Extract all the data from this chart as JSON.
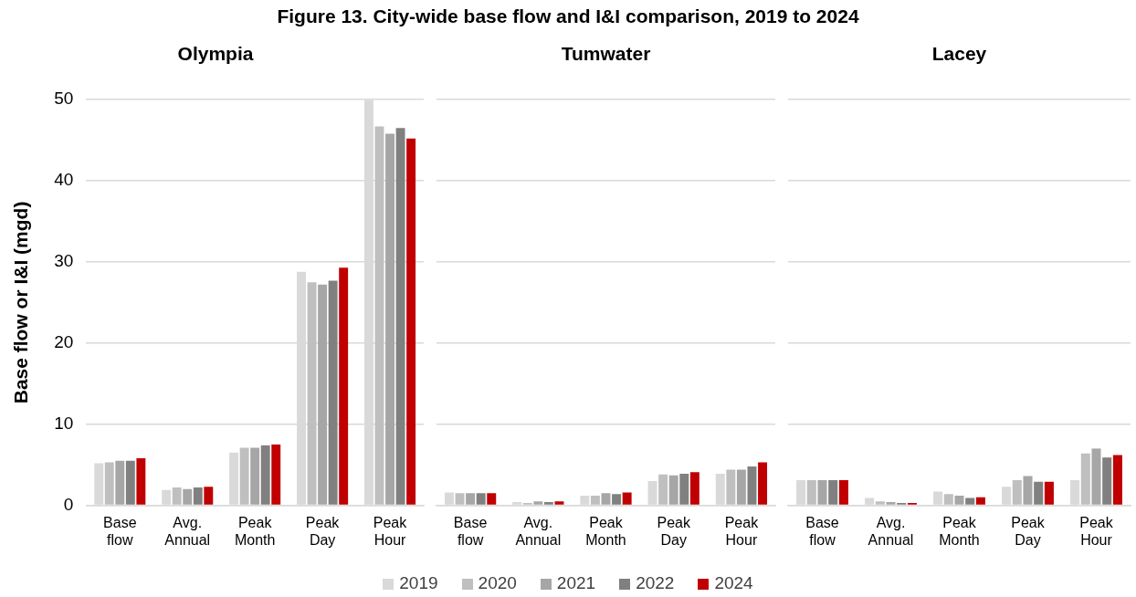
{
  "chart_data": [
    {
      "type": "bar",
      "title": "Figure 13. City-wide base flow and I&I comparison, 2019 to 2024",
      "subtitle": "Olympia",
      "ylabel": "Base flow or I&I (mgd)",
      "categories": [
        "Base flow",
        "Avg. Annual",
        "Peak Month",
        "Peak Day",
        "Peak Hour"
      ],
      "ylim": [
        0,
        50
      ],
      "yticks": [
        0,
        10,
        20,
        30,
        40,
        50
      ],
      "grid": "y",
      "legend": "bottom",
      "series": [
        {
          "name": "2019",
          "color": "#d9d9d9",
          "values": [
            5.2,
            1.9,
            6.5,
            28.8,
            50
          ]
        },
        {
          "name": "2020",
          "color": "#bfbfbf",
          "values": [
            5.3,
            2.2,
            7.1,
            27.5,
            46.7
          ]
        },
        {
          "name": "2021",
          "color": "#a6a6a6",
          "values": [
            5.5,
            2.0,
            7.1,
            27.2,
            45.8
          ]
        },
        {
          "name": "2022",
          "color": "#808080",
          "values": [
            5.5,
            2.2,
            7.4,
            27.7,
            46.5
          ]
        },
        {
          "name": "2024",
          "color": "#c00000",
          "values": [
            5.8,
            2.3,
            7.5,
            29.3,
            45.2
          ]
        }
      ]
    },
    {
      "type": "bar",
      "subtitle": "Tumwater",
      "categories": [
        "Base flow",
        "Avg. Annual",
        "Peak Month",
        "Peak Day",
        "Peak Hour"
      ],
      "ylim": [
        0,
        50
      ],
      "yticks": [
        0,
        10,
        20,
        30,
        40,
        50
      ],
      "grid": "y",
      "tick_labels": "x",
      "series": [
        {
          "name": "2019",
          "color": "#d9d9d9",
          "values": [
            1.6,
            0.4,
            1.2,
            3.0,
            3.9
          ]
        },
        {
          "name": "2020",
          "color": "#bfbfbf",
          "values": [
            1.5,
            0.3,
            1.2,
            3.8,
            4.4
          ]
        },
        {
          "name": "2021",
          "color": "#a6a6a6",
          "values": [
            1.5,
            0.5,
            1.5,
            3.7,
            4.4
          ]
        },
        {
          "name": "2022",
          "color": "#808080",
          "values": [
            1.5,
            0.4,
            1.4,
            3.9,
            4.8
          ]
        },
        {
          "name": "2024",
          "color": "#c00000",
          "values": [
            1.5,
            0.5,
            1.6,
            4.1,
            5.3
          ]
        }
      ]
    },
    {
      "type": "bar",
      "subtitle": "Lacey",
      "categories": [
        "Base flow",
        "Avg. Annual",
        "Peak Month",
        "Peak Day",
        "Peak Hour"
      ],
      "ylim": [
        0,
        50
      ],
      "yticks": [
        0,
        10,
        20,
        30,
        40,
        50
      ],
      "grid": "y",
      "tick_labels": "x",
      "series": [
        {
          "name": "2019",
          "color": "#d9d9d9",
          "values": [
            3.1,
            0.9,
            1.7,
            2.3,
            3.1
          ]
        },
        {
          "name": "2020",
          "color": "#bfbfbf",
          "values": [
            3.1,
            0.5,
            1.4,
            3.1,
            6.4
          ]
        },
        {
          "name": "2021",
          "color": "#a6a6a6",
          "values": [
            3.1,
            0.4,
            1.2,
            3.6,
            7.0
          ]
        },
        {
          "name": "2022",
          "color": "#808080",
          "values": [
            3.1,
            0.3,
            0.9,
            2.9,
            5.9
          ]
        },
        {
          "name": "2024",
          "color": "#c00000",
          "values": [
            3.1,
            0.3,
            1.0,
            2.9,
            6.2
          ]
        }
      ]
    }
  ]
}
